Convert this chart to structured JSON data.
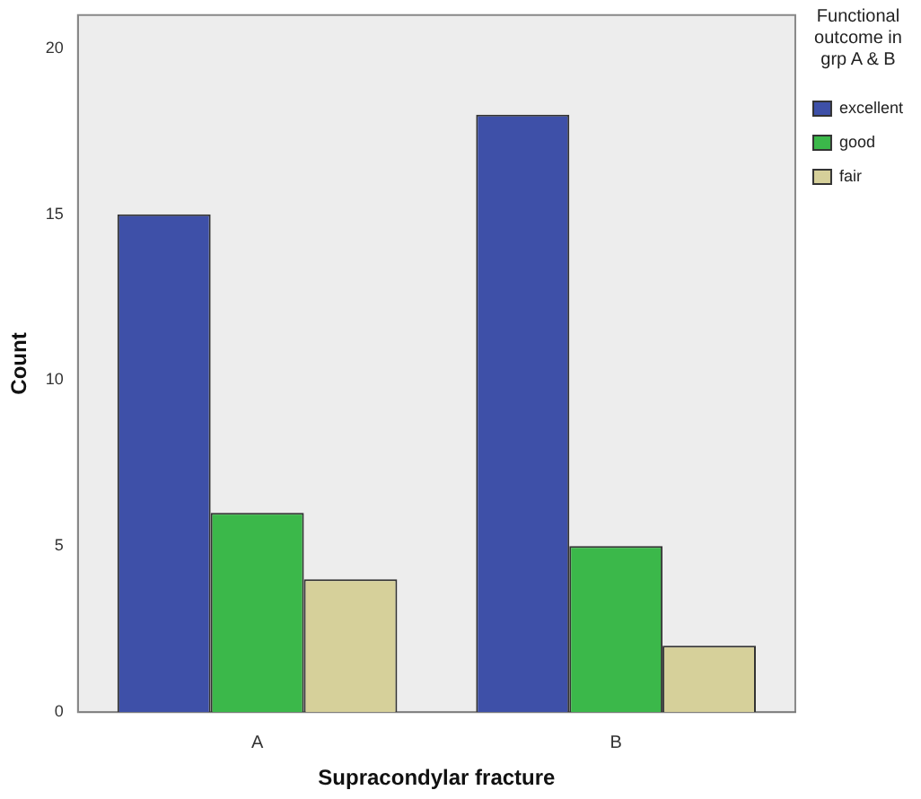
{
  "chart_data": {
    "type": "bar",
    "xlabel": "Supracondylar fracture",
    "ylabel": "Count",
    "legend_title": "Functional outcome in grp A & B",
    "categories": [
      "A",
      "B"
    ],
    "series": [
      {
        "name": "excellent",
        "color": "#3e50a8",
        "values": [
          15,
          18
        ]
      },
      {
        "name": "good",
        "color": "#3bb84a",
        "values": [
          6,
          5
        ]
      },
      {
        "name": "fair",
        "color": "#d6d09a",
        "values": [
          4,
          2
        ]
      }
    ],
    "ylim": [
      0,
      21
    ],
    "yticks": [
      0,
      5,
      10,
      15,
      20
    ],
    "grid": false,
    "legend": "right"
  }
}
